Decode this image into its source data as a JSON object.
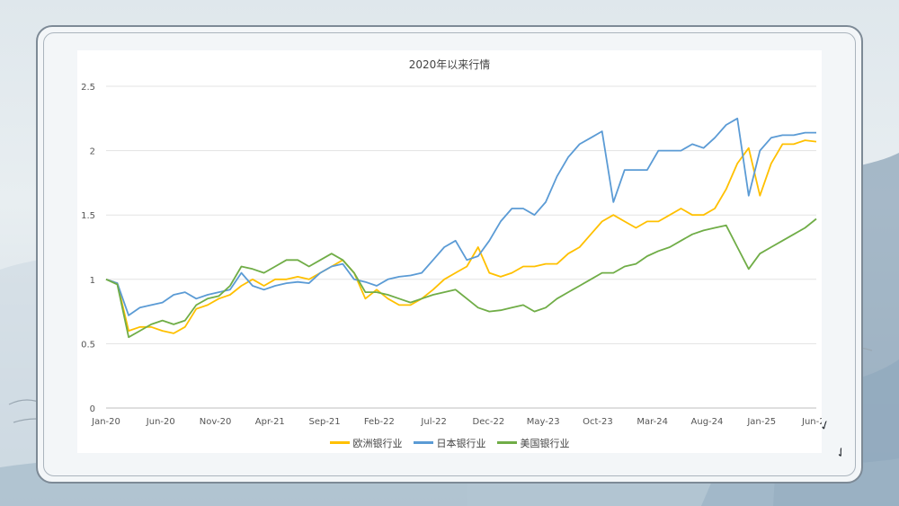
{
  "chart_data": {
    "type": "line",
    "title": "2020年以来行情",
    "x_ticks": [
      "Jan-20",
      "Jun-20",
      "Nov-20",
      "Apr-21",
      "Sep-21",
      "Feb-22",
      "Jul-22",
      "Dec-22",
      "May-23",
      "Oct-23",
      "Mar-24",
      "Aug-24",
      "Jan-25",
      "Jun-25"
    ],
    "y_ticks": [
      "0",
      "0.5",
      "1",
      "1.5",
      "2",
      "2.5"
    ],
    "ylim": [
      0,
      2.5
    ],
    "grid": "horizontal",
    "legend_position": "bottom",
    "series": [
      {
        "name": "欧洲银行业",
        "color": "#ffc000",
        "points": [
          [
            0,
            1.0
          ],
          [
            1,
            0.97
          ],
          [
            2,
            0.6
          ],
          [
            3,
            0.63
          ],
          [
            4,
            0.63
          ],
          [
            5,
            0.6
          ],
          [
            6,
            0.58
          ],
          [
            7,
            0.63
          ],
          [
            8,
            0.77
          ],
          [
            9,
            0.8
          ],
          [
            10,
            0.85
          ],
          [
            11,
            0.88
          ],
          [
            12,
            0.95
          ],
          [
            13,
            1.0
          ],
          [
            14,
            0.95
          ],
          [
            15,
            1.0
          ],
          [
            16,
            1.0
          ],
          [
            17,
            1.02
          ],
          [
            18,
            1.0
          ],
          [
            19,
            1.05
          ],
          [
            20,
            1.1
          ],
          [
            21,
            1.15
          ],
          [
            22,
            1.05
          ],
          [
            23,
            0.85
          ],
          [
            24,
            0.92
          ],
          [
            25,
            0.85
          ],
          [
            26,
            0.8
          ],
          [
            27,
            0.8
          ],
          [
            28,
            0.85
          ],
          [
            29,
            0.92
          ],
          [
            30,
            1.0
          ],
          [
            31,
            1.05
          ],
          [
            32,
            1.1
          ],
          [
            33,
            1.25
          ],
          [
            34,
            1.05
          ],
          [
            35,
            1.02
          ],
          [
            36,
            1.05
          ],
          [
            37,
            1.1
          ],
          [
            38,
            1.1
          ],
          [
            39,
            1.12
          ],
          [
            40,
            1.12
          ],
          [
            41,
            1.2
          ],
          [
            42,
            1.25
          ],
          [
            43,
            1.35
          ],
          [
            44,
            1.45
          ],
          [
            45,
            1.5
          ],
          [
            46,
            1.45
          ],
          [
            47,
            1.4
          ],
          [
            48,
            1.45
          ],
          [
            49,
            1.45
          ],
          [
            50,
            1.5
          ],
          [
            51,
            1.55
          ],
          [
            52,
            1.5
          ],
          [
            53,
            1.5
          ],
          [
            54,
            1.55
          ],
          [
            55,
            1.7
          ],
          [
            56,
            1.9
          ],
          [
            57,
            2.02
          ],
          [
            58,
            1.65
          ],
          [
            59,
            1.9
          ],
          [
            60,
            2.05
          ],
          [
            61,
            2.05
          ],
          [
            62,
            2.08
          ],
          [
            63,
            2.07
          ]
        ]
      },
      {
        "name": "日本银行业",
        "color": "#5b9bd5",
        "points": [
          [
            0,
            1.0
          ],
          [
            1,
            0.97
          ],
          [
            2,
            0.72
          ],
          [
            3,
            0.78
          ],
          [
            4,
            0.8
          ],
          [
            5,
            0.82
          ],
          [
            6,
            0.88
          ],
          [
            7,
            0.9
          ],
          [
            8,
            0.85
          ],
          [
            9,
            0.88
          ],
          [
            10,
            0.9
          ],
          [
            11,
            0.92
          ],
          [
            12,
            1.05
          ],
          [
            13,
            0.95
          ],
          [
            14,
            0.92
          ],
          [
            15,
            0.95
          ],
          [
            16,
            0.97
          ],
          [
            17,
            0.98
          ],
          [
            18,
            0.97
          ],
          [
            19,
            1.05
          ],
          [
            20,
            1.1
          ],
          [
            21,
            1.12
          ],
          [
            22,
            1.0
          ],
          [
            23,
            0.98
          ],
          [
            24,
            0.95
          ],
          [
            25,
            1.0
          ],
          [
            26,
            1.02
          ],
          [
            27,
            1.03
          ],
          [
            28,
            1.05
          ],
          [
            29,
            1.15
          ],
          [
            30,
            1.25
          ],
          [
            31,
            1.3
          ],
          [
            32,
            1.15
          ],
          [
            33,
            1.18
          ],
          [
            34,
            1.3
          ],
          [
            35,
            1.45
          ],
          [
            36,
            1.55
          ],
          [
            37,
            1.55
          ],
          [
            38,
            1.5
          ],
          [
            39,
            1.6
          ],
          [
            40,
            1.8
          ],
          [
            41,
            1.95
          ],
          [
            42,
            2.05
          ],
          [
            43,
            2.1
          ],
          [
            44,
            2.15
          ],
          [
            45,
            1.6
          ],
          [
            46,
            1.85
          ],
          [
            47,
            1.85
          ],
          [
            48,
            1.85
          ],
          [
            49,
            2.0
          ],
          [
            50,
            2.0
          ],
          [
            51,
            2.0
          ],
          [
            52,
            2.05
          ],
          [
            53,
            2.02
          ],
          [
            54,
            2.1
          ],
          [
            55,
            2.2
          ],
          [
            56,
            2.25
          ],
          [
            57,
            1.65
          ],
          [
            58,
            2.0
          ],
          [
            59,
            2.1
          ],
          [
            60,
            2.12
          ],
          [
            61,
            2.12
          ],
          [
            62,
            2.14
          ],
          [
            63,
            2.14
          ]
        ]
      },
      {
        "name": "美国银行业",
        "color": "#70ad47",
        "points": [
          [
            0,
            1.0
          ],
          [
            1,
            0.96
          ],
          [
            2,
            0.55
          ],
          [
            3,
            0.6
          ],
          [
            4,
            0.65
          ],
          [
            5,
            0.68
          ],
          [
            6,
            0.65
          ],
          [
            7,
            0.68
          ],
          [
            8,
            0.8
          ],
          [
            9,
            0.85
          ],
          [
            10,
            0.87
          ],
          [
            11,
            0.95
          ],
          [
            12,
            1.1
          ],
          [
            13,
            1.08
          ],
          [
            14,
            1.05
          ],
          [
            15,
            1.1
          ],
          [
            16,
            1.15
          ],
          [
            17,
            1.15
          ],
          [
            18,
            1.1
          ],
          [
            19,
            1.15
          ],
          [
            20,
            1.2
          ],
          [
            21,
            1.15
          ],
          [
            22,
            1.05
          ],
          [
            23,
            0.9
          ],
          [
            24,
            0.9
          ],
          [
            25,
            0.88
          ],
          [
            26,
            0.85
          ],
          [
            27,
            0.82
          ],
          [
            28,
            0.85
          ],
          [
            29,
            0.88
          ],
          [
            30,
            0.9
          ],
          [
            31,
            0.92
          ],
          [
            32,
            0.85
          ],
          [
            33,
            0.78
          ],
          [
            34,
            0.75
          ],
          [
            35,
            0.76
          ],
          [
            36,
            0.78
          ],
          [
            37,
            0.8
          ],
          [
            38,
            0.75
          ],
          [
            39,
            0.78
          ],
          [
            40,
            0.85
          ],
          [
            41,
            0.9
          ],
          [
            42,
            0.95
          ],
          [
            43,
            1.0
          ],
          [
            44,
            1.05
          ],
          [
            45,
            1.05
          ],
          [
            46,
            1.1
          ],
          [
            47,
            1.12
          ],
          [
            48,
            1.18
          ],
          [
            49,
            1.22
          ],
          [
            50,
            1.25
          ],
          [
            51,
            1.3
          ],
          [
            52,
            1.35
          ],
          [
            53,
            1.38
          ],
          [
            54,
            1.4
          ],
          [
            55,
            1.42
          ],
          [
            56,
            1.25
          ],
          [
            57,
            1.08
          ],
          [
            58,
            1.2
          ],
          [
            59,
            1.25
          ],
          [
            60,
            1.3
          ],
          [
            61,
            1.35
          ],
          [
            62,
            1.4
          ],
          [
            63,
            1.47
          ]
        ]
      }
    ]
  }
}
